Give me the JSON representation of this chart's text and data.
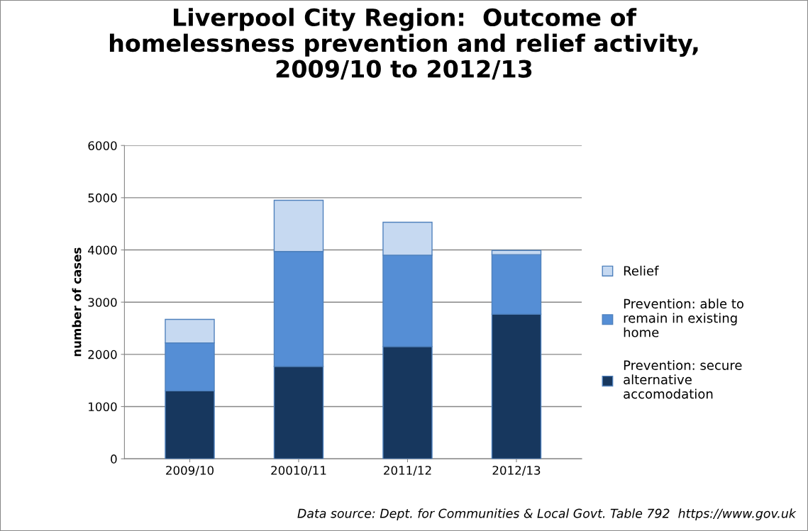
{
  "chart_data": {
    "type": "bar",
    "stacked": true,
    "title": "Liverpool City Region:  Outcome of homelessness prevention and relief activity, 2009/10 to 2012/13",
    "ylabel": "number of cases",
    "categories": [
      "2009/10",
      "20010/11",
      "2011/12",
      "2012/13"
    ],
    "series": [
      {
        "name": "Prevention: secure alternative accomodation",
        "color": "#17375e",
        "values": [
          1300,
          1770,
          2150,
          2770
        ]
      },
      {
        "name": "Prevention: able to remain in existing home",
        "color": "#558ed5",
        "values": [
          920,
          2200,
          1750,
          1140
        ]
      },
      {
        "name": "Relief",
        "color": "#c6d9f1",
        "values": [
          450,
          980,
          630,
          80
        ]
      }
    ],
    "ylim": [
      0,
      6000
    ],
    "yticks": [
      0,
      1000,
      2000,
      3000,
      4000,
      5000,
      6000
    ],
    "grid": "y",
    "legend": "right",
    "annotations": [
      "Data source: Dept. for Communities & Local Govt. Table 792  https://www.gov.uk"
    ]
  }
}
